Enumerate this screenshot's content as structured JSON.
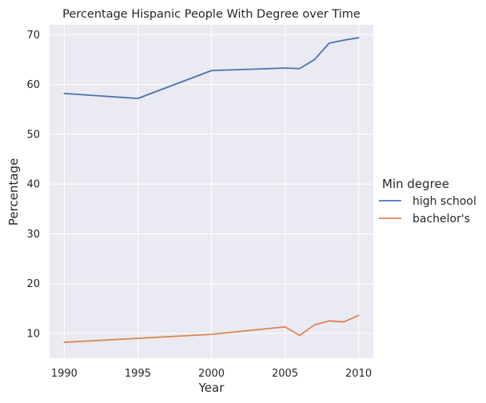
{
  "chart_data": {
    "type": "line",
    "title": "Percentage Hispanic People With Degree over Time",
    "xlabel": "Year",
    "ylabel": "Percentage",
    "xlim": [
      1989,
      2011
    ],
    "ylim": [
      5,
      72
    ],
    "x_ticks": [
      1990,
      1995,
      2000,
      2005,
      2010
    ],
    "y_ticks": [
      10,
      20,
      30,
      40,
      50,
      60,
      70
    ],
    "grid": true,
    "legend": {
      "title": "Min degree",
      "placement": "right"
    },
    "series": [
      {
        "name": "high school",
        "color": "#4c72b0",
        "x": [
          1990,
          1995,
          2000,
          2005,
          2006,
          2007,
          2008,
          2009,
          2010
        ],
        "y": [
          58.2,
          57.2,
          62.8,
          63.3,
          63.2,
          65.0,
          68.3,
          68.9,
          69.4
        ]
      },
      {
        "name": "bachelor's",
        "color": "#dd8452",
        "x": [
          1990,
          1995,
          2000,
          2005,
          2006,
          2007,
          2008,
          2009,
          2010
        ],
        "y": [
          8.2,
          9.0,
          9.8,
          11.3,
          9.6,
          11.7,
          12.5,
          12.3,
          13.6
        ]
      }
    ]
  }
}
